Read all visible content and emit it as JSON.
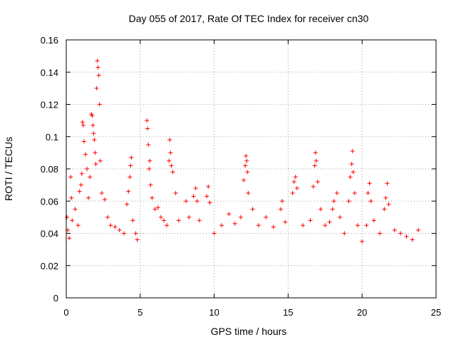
{
  "chart_data": {
    "type": "scatter",
    "title": "Day 055 of 2017, Rate Of TEC Index for receiver cn30",
    "xlabel": "GPS time / hours",
    "ylabel": "ROTI / TECUs",
    "xlim": [
      0,
      25
    ],
    "ylim": [
      0,
      0.16
    ],
    "xticks": [
      0,
      5,
      10,
      15,
      20,
      25
    ],
    "yticks": [
      0,
      0.02,
      0.04,
      0.06,
      0.08,
      0.1,
      0.12,
      0.14,
      0.16
    ],
    "xtick_labels": [
      "0",
      "5",
      "10",
      "15",
      "20",
      "25"
    ],
    "ytick_labels": [
      "0",
      "0.02",
      "0.04",
      "0.06",
      "0.08",
      "0.1",
      "0.12",
      "0.14",
      "0.16"
    ],
    "grid": true,
    "legend": "none",
    "marker": "+",
    "color": "#ff0000",
    "data_gap_hours": [
      4.9,
      5.3
    ],
    "series": [
      {
        "name": "ROTI",
        "points": [
          [
            0.05,
            0.05
          ],
          [
            0.1,
            0.042
          ],
          [
            0.2,
            0.037
          ],
          [
            0.3,
            0.075
          ],
          [
            0.35,
            0.062
          ],
          [
            0.4,
            0.048
          ],
          [
            0.6,
            0.055
          ],
          [
            0.8,
            0.045
          ],
          [
            0.9,
            0.066
          ],
          [
            1.0,
            0.07
          ],
          [
            1.05,
            0.077
          ],
          [
            1.1,
            0.109
          ],
          [
            1.15,
            0.107
          ],
          [
            1.2,
            0.097
          ],
          [
            1.3,
            0.089
          ],
          [
            1.4,
            0.08
          ],
          [
            1.5,
            0.062
          ],
          [
            1.6,
            0.075
          ],
          [
            1.7,
            0.114
          ],
          [
            1.75,
            0.113
          ],
          [
            1.8,
            0.107
          ],
          [
            1.85,
            0.102
          ],
          [
            1.9,
            0.098
          ],
          [
            1.95,
            0.09
          ],
          [
            2.0,
            0.083
          ],
          [
            2.05,
            0.13
          ],
          [
            2.1,
            0.147
          ],
          [
            2.15,
            0.143
          ],
          [
            2.2,
            0.138
          ],
          [
            2.25,
            0.12
          ],
          [
            2.3,
            0.085
          ],
          [
            2.4,
            0.065
          ],
          [
            2.6,
            0.061
          ],
          [
            2.8,
            0.05
          ],
          [
            3.0,
            0.045
          ],
          [
            3.3,
            0.044
          ],
          [
            3.6,
            0.042
          ],
          [
            3.9,
            0.04
          ],
          [
            4.1,
            0.058
          ],
          [
            4.2,
            0.066
          ],
          [
            4.3,
            0.075
          ],
          [
            4.35,
            0.082
          ],
          [
            4.4,
            0.087
          ],
          [
            4.5,
            0.048
          ],
          [
            4.7,
            0.04
          ],
          [
            4.8,
            0.036
          ],
          [
            5.45,
            0.11
          ],
          [
            5.5,
            0.105
          ],
          [
            5.55,
            0.095
          ],
          [
            5.6,
            0.08
          ],
          [
            5.65,
            0.085
          ],
          [
            5.7,
            0.07
          ],
          [
            5.8,
            0.062
          ],
          [
            6.0,
            0.055
          ],
          [
            6.2,
            0.056
          ],
          [
            6.4,
            0.05
          ],
          [
            6.6,
            0.048
          ],
          [
            6.8,
            0.045
          ],
          [
            6.95,
            0.085
          ],
          [
            7.0,
            0.098
          ],
          [
            7.05,
            0.09
          ],
          [
            7.1,
            0.082
          ],
          [
            7.2,
            0.078
          ],
          [
            7.4,
            0.065
          ],
          [
            7.6,
            0.048
          ],
          [
            8.1,
            0.06
          ],
          [
            8.3,
            0.05
          ],
          [
            8.6,
            0.063
          ],
          [
            8.75,
            0.068
          ],
          [
            8.85,
            0.06
          ],
          [
            9.0,
            0.048
          ],
          [
            9.5,
            0.063
          ],
          [
            9.6,
            0.069
          ],
          [
            9.7,
            0.059
          ],
          [
            10.0,
            0.04
          ],
          [
            10.5,
            0.045
          ],
          [
            11.0,
            0.052
          ],
          [
            11.4,
            0.046
          ],
          [
            11.8,
            0.05
          ],
          [
            12.0,
            0.073
          ],
          [
            12.1,
            0.082
          ],
          [
            12.15,
            0.088
          ],
          [
            12.2,
            0.085
          ],
          [
            12.25,
            0.078
          ],
          [
            12.3,
            0.065
          ],
          [
            12.6,
            0.055
          ],
          [
            13.0,
            0.045
          ],
          [
            13.5,
            0.05
          ],
          [
            14.0,
            0.044
          ],
          [
            14.5,
            0.055
          ],
          [
            14.6,
            0.06
          ],
          [
            14.8,
            0.047
          ],
          [
            15.3,
            0.065
          ],
          [
            15.4,
            0.072
          ],
          [
            15.5,
            0.075
          ],
          [
            15.6,
            0.068
          ],
          [
            16.0,
            0.045
          ],
          [
            16.5,
            0.048
          ],
          [
            16.7,
            0.069
          ],
          [
            16.8,
            0.082
          ],
          [
            16.85,
            0.09
          ],
          [
            16.9,
            0.085
          ],
          [
            17.0,
            0.072
          ],
          [
            17.2,
            0.055
          ],
          [
            17.5,
            0.045
          ],
          [
            17.8,
            0.047
          ],
          [
            18.0,
            0.055
          ],
          [
            18.1,
            0.06
          ],
          [
            18.3,
            0.065
          ],
          [
            18.5,
            0.05
          ],
          [
            18.8,
            0.04
          ],
          [
            19.1,
            0.06
          ],
          [
            19.2,
            0.075
          ],
          [
            19.3,
            0.083
          ],
          [
            19.35,
            0.091
          ],
          [
            19.4,
            0.078
          ],
          [
            19.5,
            0.065
          ],
          [
            19.7,
            0.045
          ],
          [
            20.0,
            0.035
          ],
          [
            20.3,
            0.045
          ],
          [
            20.4,
            0.065
          ],
          [
            20.5,
            0.071
          ],
          [
            20.6,
            0.06
          ],
          [
            20.8,
            0.048
          ],
          [
            21.2,
            0.04
          ],
          [
            21.5,
            0.055
          ],
          [
            21.6,
            0.062
          ],
          [
            21.7,
            0.071
          ],
          [
            21.8,
            0.058
          ],
          [
            22.2,
            0.042
          ],
          [
            22.6,
            0.04
          ],
          [
            23.0,
            0.038
          ],
          [
            23.4,
            0.036
          ],
          [
            23.8,
            0.042
          ]
        ]
      }
    ]
  }
}
